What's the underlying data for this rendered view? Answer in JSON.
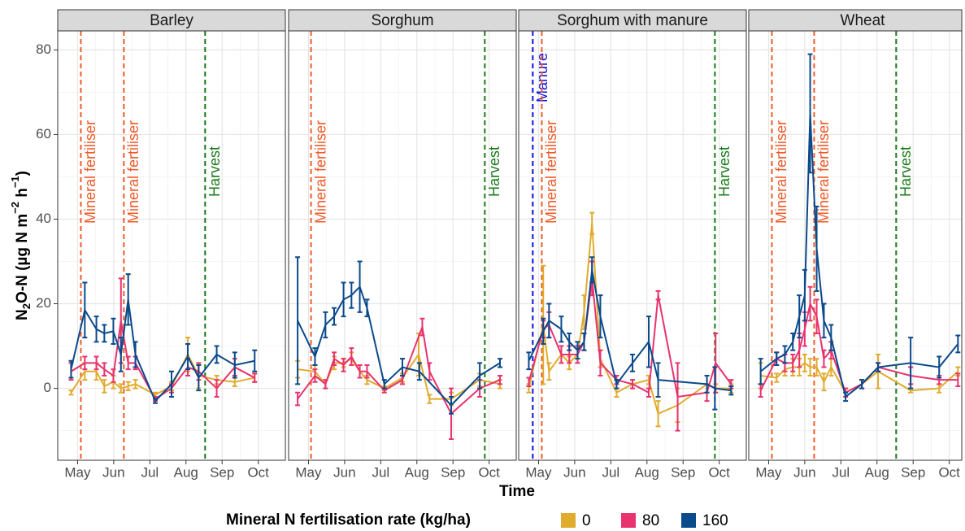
{
  "chart_data": {
    "type": "line",
    "y_label": [
      "N",
      "2",
      "O-N (µg N m",
      "−2",
      " h",
      "−1",
      ")"
    ],
    "x_label": "Time",
    "legend_title": "Mineral N fertilisation rate (kg/ha)",
    "legend": "bottom",
    "grid": true,
    "ylim": [
      -17,
      84.5
    ],
    "yticks": [
      0,
      20,
      40,
      60,
      80
    ],
    "xlim": [
      4.45,
      10.75
    ],
    "xticks": [
      {
        "value": 5,
        "label": "May"
      },
      {
        "value": 6,
        "label": "Jun"
      },
      {
        "value": 7,
        "label": "Jul"
      },
      {
        "value": 8,
        "label": "Aug"
      },
      {
        "value": 9,
        "label": "Sep"
      },
      {
        "value": 10,
        "label": "Oct"
      }
    ],
    "series_names": [
      "0",
      "80",
      "160"
    ],
    "colors": [
      "#e0ac2e",
      "#e8336f",
      "#0b4a8b"
    ],
    "panels": [
      {
        "title": "Barley",
        "annotations": [
          {
            "text": "Mineral fertiliser",
            "x": 5.09,
            "color": "#f05a28"
          },
          {
            "text": "Mineral fertiliser",
            "x": 6.28,
            "color": "#f05a28"
          },
          {
            "text": "Harvest",
            "x": 8.53,
            "color": "#1a7a1a"
          }
        ],
        "series": [
          {
            "x": [
              4.82,
              5.2,
              5.52,
              5.74,
              5.99,
              6.2,
              6.4,
              6.6,
              7.15,
              7.6,
              8.05,
              8.35,
              8.85,
              9.35,
              9.9
            ],
            "values": [
              -1,
              4,
              4,
              0.5,
              1.5,
              0,
              0.5,
              1,
              -1.5,
              0.5,
              8,
              3,
              2,
              1.5,
              2.5
            ],
            "errors": [
              0.5,
              2,
              2,
              1.5,
              1.5,
              1,
              1,
              1,
              0.5,
              1,
              4,
              3,
              1,
              1,
              1
            ]
          },
          {
            "x": [
              4.82,
              5.2,
              5.52,
              5.74,
              5.99,
              6.2,
              6.4,
              6.6,
              7.15,
              7.6,
              8.05,
              8.35,
              8.85,
              9.35,
              9.9
            ],
            "values": [
              4,
              6,
              6,
              4.5,
              3,
              16,
              6,
              6,
              -2.5,
              0,
              5,
              4,
              0,
              5,
              2.5
            ],
            "errors": [
              2,
              1.5,
              1.5,
              1.5,
              1.5,
              10,
              1.5,
              1.5,
              0.5,
              1,
              2,
              2,
              2,
              2,
              1
            ]
          },
          {
            "x": [
              4.82,
              5.2,
              5.52,
              5.74,
              5.99,
              6.2,
              6.4,
              6.6,
              7.15,
              7.6,
              8.05,
              8.35,
              8.85,
              9.35,
              9.9
            ],
            "values": [
              4.5,
              18.5,
              14,
              13,
              13.5,
              8,
              21,
              8,
              -3,
              1,
              7.5,
              2.5,
              8,
              5.5,
              6.5
            ],
            "errors": [
              2,
              6.5,
              3,
              2,
              3,
              4,
              6,
              3,
              0.5,
              3,
              3,
              3,
              2,
              3,
              2.5
            ]
          }
        ]
      },
      {
        "title": "Sorghum",
        "annotations": [
          {
            "text": "Mineral fertiliser",
            "x": 5.07,
            "color": "#f05a28"
          },
          {
            "text": "Harvest",
            "x": 9.88,
            "color": "#1a7a1a"
          }
        ],
        "series": [
          {
            "x": [
              4.7,
              5.18,
              5.47,
              5.71,
              5.97,
              6.19,
              6.42,
              6.62,
              7.1,
              7.6,
              8.05,
              8.35,
              8.95,
              9.74,
              10.3
            ],
            "values": [
              4.5,
              4,
              1,
              6,
              6,
              7,
              4,
              2,
              0,
              2.5,
              8,
              -2.5,
              -2.5,
              2,
              1
            ],
            "errors": [
              2,
              1.5,
              1,
              1.5,
              1,
              1.5,
              1.5,
              1,
              0.5,
              1,
              5,
              1,
              1.5,
              1.5,
              1
            ]
          },
          {
            "x": [
              4.7,
              5.18,
              5.47,
              5.71,
              5.97,
              6.19,
              6.42,
              6.62,
              7.1,
              7.6,
              8.15,
              8.35,
              8.95,
              9.74,
              10.3
            ],
            "values": [
              -2.5,
              3,
              1,
              7,
              5.5,
              7.5,
              4,
              4,
              -0.5,
              2,
              14.5,
              4,
              -6,
              0,
              2
            ],
            "errors": [
              1.5,
              1.5,
              1,
              1.5,
              1.5,
              2,
              1.5,
              1.5,
              0.5,
              1,
              2,
              2,
              6,
              2,
              1
            ]
          },
          {
            "x": [
              4.7,
              5.18,
              5.47,
              5.71,
              5.97,
              6.19,
              6.42,
              6.62,
              7.1,
              7.6,
              8.07,
              8.95,
              9.74,
              10.3
            ],
            "values": [
              16,
              7.5,
              15,
              17,
              21,
              22,
              24,
              19,
              1,
              5,
              4,
              -4,
              3,
              6
            ],
            "errors": [
              15,
              2,
              3,
              2,
              4,
              3,
              6,
              2,
              1,
              2,
              2,
              2,
              3,
              1
            ]
          }
        ]
      },
      {
        "title": "Sorghum with manure",
        "annotations": [
          {
            "text": "Manure",
            "x": 4.84,
            "color": "#1010e0"
          },
          {
            "text": "Mineral fertiliser",
            "x": 5.09,
            "color": "#f05a28"
          },
          {
            "text": "Harvest",
            "x": 9.88,
            "color": "#1a7a1a"
          }
        ],
        "series": [
          {
            "x": [
              4.73,
              5.13,
              5.29,
              5.63,
              5.85,
              6.08,
              6.26,
              6.48,
              6.71,
              7.16,
              7.6,
              8.05,
              8.31,
              8.85,
              9.66,
              9.9,
              10.33
            ],
            "values": [
              0,
              15,
              4,
              8,
              6,
              8,
              18,
              39,
              7,
              -1,
              1,
              2,
              -6,
              -4,
              1,
              0,
              0
            ],
            "errors": [
              1,
              14,
              2,
              2,
              1.5,
              2,
              4,
              2.5,
              2,
              1,
              1,
              1,
              3,
              4,
              2,
              1,
              1
            ]
          },
          {
            "x": [
              4.73,
              5.13,
              5.29,
              5.63,
              5.85,
              6.08,
              6.26,
              6.48,
              6.71,
              7.16,
              7.6,
              8.05,
              8.31,
              8.85,
              9.66,
              9.9,
              10.33
            ],
            "values": [
              1.5,
              14,
              15,
              8,
              8,
              8,
              11,
              26,
              6,
              2,
              1,
              -1,
              22,
              -2,
              -1,
              6,
              1
            ],
            "errors": [
              1,
              2,
              3,
              2,
              2,
              2,
              2,
              4,
              3,
              1,
              1,
              1,
              1,
              8,
              2,
              7,
              1
            ]
          },
          {
            "x": [
              4.73,
              5.13,
              5.29,
              5.63,
              5.85,
              6.08,
              6.26,
              6.48,
              6.71,
              7.16,
              7.6,
              8.05,
              8.31,
              9.66,
              9.88,
              10.33
            ],
            "values": [
              6.5,
              13.5,
              16,
              14,
              11,
              9,
              11,
              28,
              17,
              1,
              6,
              11,
              2,
              1,
              0,
              -0.5
            ],
            "errors": [
              2,
              3,
              4,
              3,
              2,
              2,
              2,
              3,
              5,
              1,
              2,
              6,
              4,
              2,
              5,
              1
            ]
          }
        ]
      },
      {
        "title": "Wheat",
        "annotations": [
          {
            "text": "Mineral fertiliser",
            "x": 5.09,
            "color": "#f05a28"
          },
          {
            "text": "Mineral fertiliser",
            "x": 6.26,
            "color": "#f05a28"
          },
          {
            "text": "Harvest",
            "x": 8.53,
            "color": "#1a7a1a"
          }
        ],
        "series": [
          {
            "x": [
              4.78,
              5.22,
              5.45,
              5.67,
              5.85,
              6.0,
              6.15,
              6.33,
              6.53,
              6.73,
              7.13,
              7.58,
              8.03,
              8.93,
              9.72,
              10.24
            ],
            "values": [
              3,
              2.5,
              4.5,
              5,
              5,
              6,
              5,
              5,
              1.5,
              5,
              -1,
              1,
              4,
              -0.5,
              0,
              4
            ],
            "errors": [
              3,
              1,
              1.5,
              2,
              2,
              2,
              2,
              2,
              2,
              2,
              1,
              1,
              4,
              0.5,
              1,
              1
            ]
          },
          {
            "x": [
              4.78,
              5.22,
              5.45,
              5.67,
              5.85,
              6.0,
              6.15,
              6.33,
              6.53,
              6.73,
              7.13,
              7.58,
              8.03,
              8.93,
              9.72,
              10.24
            ],
            "values": [
              -0.5,
              7,
              6,
              6,
              9,
              14,
              20,
              17,
              7,
              9,
              -1,
              1,
              5,
              3,
              2,
              2
            ],
            "errors": [
              1.5,
              1.5,
              2,
              2,
              4,
              4,
              4,
              4,
              2,
              2,
              1,
              1,
              1,
              2,
              1,
              1.5
            ]
          },
          {
            "x": [
              4.78,
              5.22,
              5.45,
              5.67,
              5.85,
              6.0,
              6.15,
              6.33,
              6.53,
              6.73,
              7.13,
              7.58,
              8.03,
              8.93,
              9.72,
              10.24
            ],
            "values": [
              4,
              7,
              8,
              11,
              17,
              22,
              65,
              33,
              16,
              12,
              -2,
              1,
              5,
              6,
              5,
              10.5
            ],
            "errors": [
              3,
              1.5,
              2,
              2,
              5,
              6,
              14,
              10,
              4,
              3,
              1,
              1,
              1,
              6,
              2.5,
              2
            ]
          }
        ]
      }
    ]
  }
}
